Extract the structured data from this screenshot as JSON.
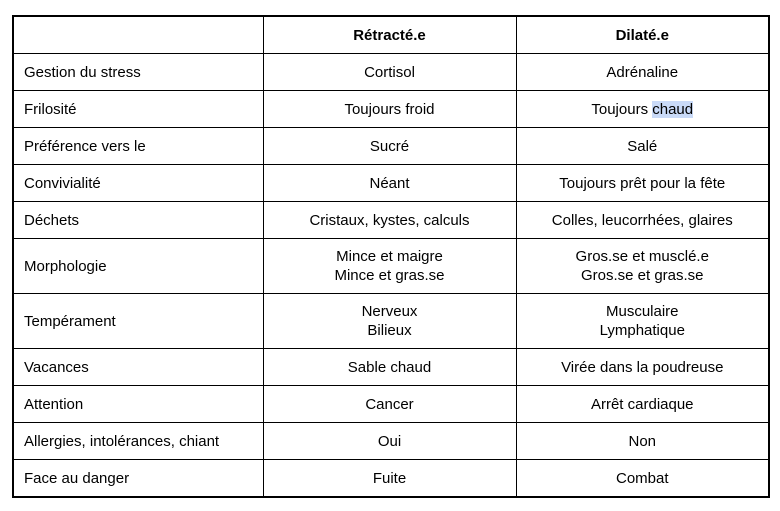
{
  "page": {
    "background": "#ffffff"
  },
  "colors": {
    "border": "#000000",
    "text": "#000000",
    "highlight_bg": "#c9daf8"
  },
  "table": {
    "headers": [
      "",
      "Rétracté.e",
      "Dilaté.e"
    ],
    "rows": [
      {
        "label": "Gestion du stress",
        "cells": [
          [
            [
              {
                "t": "Cortisol"
              }
            ]
          ],
          [
            [
              {
                "t": "Adrénaline"
              }
            ]
          ]
        ]
      },
      {
        "label": "Frilosité",
        "cells": [
          [
            [
              {
                "t": "Toujours froid"
              }
            ]
          ],
          [
            [
              {
                "t": "Toujours "
              },
              {
                "t": "chaud",
                "hl": true
              }
            ]
          ]
        ]
      },
      {
        "label": "Préférence vers le",
        "cells": [
          [
            [
              {
                "t": "Sucré"
              }
            ]
          ],
          [
            [
              {
                "t": "Salé"
              }
            ]
          ]
        ]
      },
      {
        "label": "Convivialité",
        "cells": [
          [
            [
              {
                "t": "Néant"
              }
            ]
          ],
          [
            [
              {
                "t": "Toujours prêt pour la fête"
              }
            ]
          ]
        ]
      },
      {
        "label": "Déchets",
        "cells": [
          [
            [
              {
                "t": "Cristaux, kystes, calculs"
              }
            ]
          ],
          [
            [
              {
                "t": "Colles, leucorrhées, glaires"
              }
            ]
          ]
        ]
      },
      {
        "label": "Morphologie",
        "cells": [
          [
            [
              {
                "t": "Mince et maigre"
              }
            ],
            [
              {
                "t": "Mince et gras.se"
              }
            ]
          ],
          [
            [
              {
                "t": "Gros.se et musclé.e"
              }
            ],
            [
              {
                "t": "Gros.se et gras.se"
              }
            ]
          ]
        ]
      },
      {
        "label": "Tempérament",
        "cells": [
          [
            [
              {
                "t": "Nerveux"
              }
            ],
            [
              {
                "t": "Bilieux"
              }
            ]
          ],
          [
            [
              {
                "t": "Musculaire"
              }
            ],
            [
              {
                "t": "Lymphatique"
              }
            ]
          ]
        ]
      },
      {
        "label": "Vacances",
        "cells": [
          [
            [
              {
                "t": "Sable chaud"
              }
            ]
          ],
          [
            [
              {
                "t": "Virée dans la poudreuse"
              }
            ]
          ]
        ]
      },
      {
        "label": "Attention",
        "cells": [
          [
            [
              {
                "t": "Cancer"
              }
            ]
          ],
          [
            [
              {
                "t": "Arrêt cardiaque"
              }
            ]
          ]
        ]
      },
      {
        "label": "Allergies, intolérances, chiant",
        "cells": [
          [
            [
              {
                "t": "Oui"
              }
            ]
          ],
          [
            [
              {
                "t": "Non"
              }
            ]
          ]
        ]
      },
      {
        "label": "Face au danger",
        "cells": [
          [
            [
              {
                "t": "Fuite"
              }
            ]
          ],
          [
            [
              {
                "t": "Combat"
              }
            ]
          ]
        ]
      }
    ]
  }
}
